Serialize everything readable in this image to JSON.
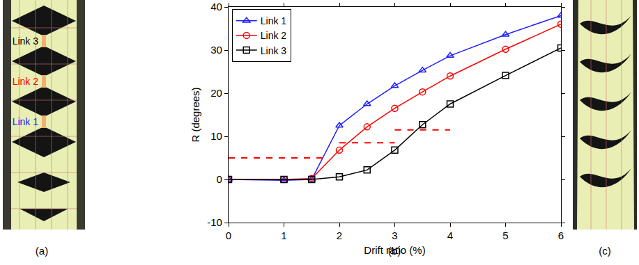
{
  "chart_data": {
    "type": "line",
    "x_label": "Drift ratio (%)",
    "y_label": "R (degrees)",
    "x": [
      0,
      1,
      1.5,
      2,
      2.5,
      3,
      3.5,
      4,
      5,
      6
    ],
    "series": [
      {
        "name": "Link 1",
        "color": "#1f1fff",
        "marker": "triangle-open",
        "line_style": "solid",
        "values": [
          0,
          -0.2,
          0,
          12.5,
          17.5,
          21.7,
          25.3,
          28.7,
          33.6,
          38
        ]
      },
      {
        "name": "Link 2",
        "color": "#ff0000",
        "marker": "circle-open",
        "line_style": "solid",
        "values": [
          0,
          0,
          0.2,
          6.8,
          12.2,
          16.5,
          20.3,
          24,
          30.2,
          36
        ]
      },
      {
        "name": "Link 3",
        "color": "#000000",
        "marker": "square-open",
        "line_style": "solid",
        "values": [
          0,
          0,
          0,
          0.6,
          2.2,
          6.8,
          12.7,
          17.5,
          24.1,
          30.5
        ]
      },
      {
        "color": "#ff0000",
        "line_style": "dashed",
        "x": [
          0,
          1.8
        ],
        "values": [
          5,
          5
        ]
      },
      {
        "color": "#ff0000",
        "line_style": "dashed",
        "x": [
          2,
          3
        ],
        "values": [
          8.5,
          8.5
        ]
      },
      {
        "color": "#ff0000",
        "line_style": "dashed",
        "x": [
          3,
          4
        ],
        "values": [
          11.5,
          11.5
        ]
      }
    ],
    "xlim": [
      0,
      6
    ],
    "xticks": [
      0,
      1,
      2,
      3,
      4,
      5,
      6
    ],
    "ylim": [
      -10,
      40
    ],
    "yticks": [
      -10,
      0,
      10,
      20,
      30,
      40
    ],
    "grid": false,
    "legend": "upper left"
  },
  "panels": {
    "a": {
      "caption": "(a)",
      "labels": [
        {
          "text": "Link 3",
          "color": "#000000"
        },
        {
          "text": "Link 2",
          "color": "#ff0000"
        },
        {
          "text": "Link 1",
          "color": "#1f1fff"
        }
      ]
    },
    "b": {
      "caption": "(b)"
    },
    "c": {
      "caption": "(c)"
    }
  }
}
